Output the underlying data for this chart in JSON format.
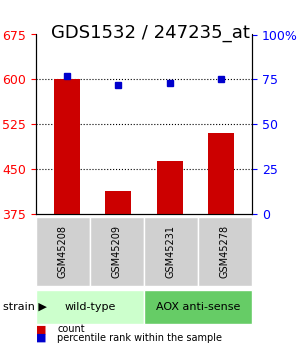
{
  "title": "GDS1532 / 247235_at",
  "samples": [
    "GSM45208",
    "GSM45209",
    "GSM45231",
    "GSM45278"
  ],
  "counts": [
    600,
    413,
    463,
    510
  ],
  "percentiles": [
    77,
    72,
    73,
    75
  ],
  "ylim_left": [
    375,
    675
  ],
  "ylim_right": [
    0,
    100
  ],
  "yticks_left": [
    375,
    450,
    525,
    600,
    675
  ],
  "yticks_right": [
    0,
    25,
    50,
    75,
    100
  ],
  "bar_color": "#cc0000",
  "dot_color": "#0000cc",
  "groups": [
    {
      "label": "wild-type",
      "indices": [
        0,
        1
      ],
      "color": "#ccffcc"
    },
    {
      "label": "AOX anti-sense",
      "indices": [
        2,
        3
      ],
      "color": "#66cc66"
    }
  ],
  "group_label_prefix": "strain",
  "title_fontsize": 13,
  "tick_fontsize": 9,
  "label_fontsize": 9,
  "bar_width": 0.5,
  "x_positions": [
    0,
    1,
    2,
    3
  ]
}
